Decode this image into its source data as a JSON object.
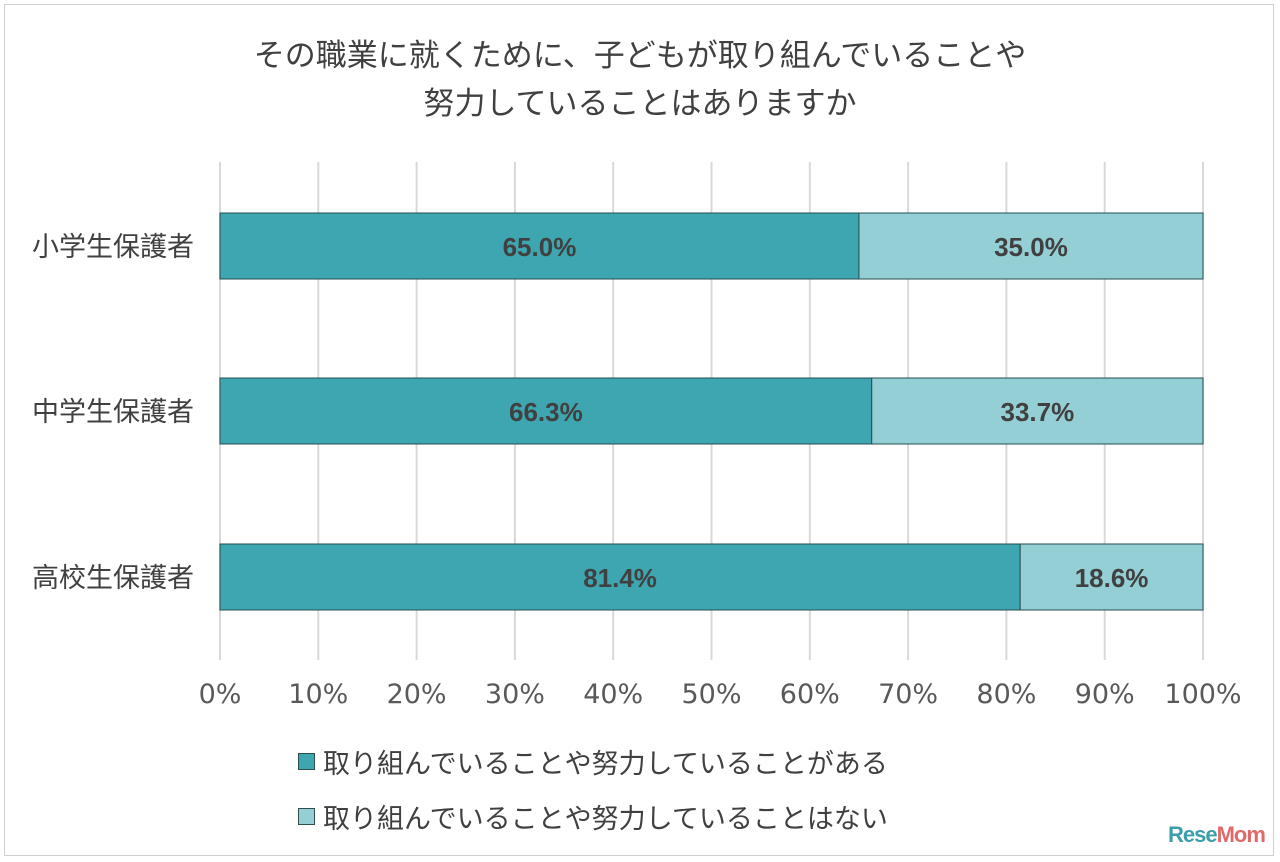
{
  "title_lines": [
    "その職業に就くために、子どもが取り組んでいることや",
    "努力していることはありますか"
  ],
  "watermark": {
    "part1": "Rese",
    "part2": "Mom"
  },
  "chart_data": {
    "type": "bar",
    "orientation": "horizontal",
    "stacked": true,
    "percent_stacked": true,
    "title": "その職業に就くために、子どもが取り組んでいることや努力していることはありますか",
    "categories": [
      "小学生保護者",
      "中学生保護者",
      "高校生保護者"
    ],
    "series": [
      {
        "name": "取り組んでいることや努力していることがある",
        "values": [
          65.0,
          66.3,
          81.4
        ],
        "labels": [
          "65.0%",
          "66.3%",
          "81.4%"
        ],
        "color": "#3ea6b0"
      },
      {
        "name": "取り組んでいることや努力していることはない",
        "values": [
          35.0,
          33.7,
          18.6
        ],
        "labels": [
          "35.0%",
          "33.7%",
          "18.6%"
        ],
        "color": "#93cfd4"
      }
    ],
    "xlim": [
      0,
      100
    ],
    "xticks": [
      "0%",
      "10%",
      "20%",
      "30%",
      "40%",
      "50%",
      "60%",
      "70%",
      "80%",
      "90%",
      "100%"
    ],
    "grid": true,
    "legend_position": "bottom"
  }
}
